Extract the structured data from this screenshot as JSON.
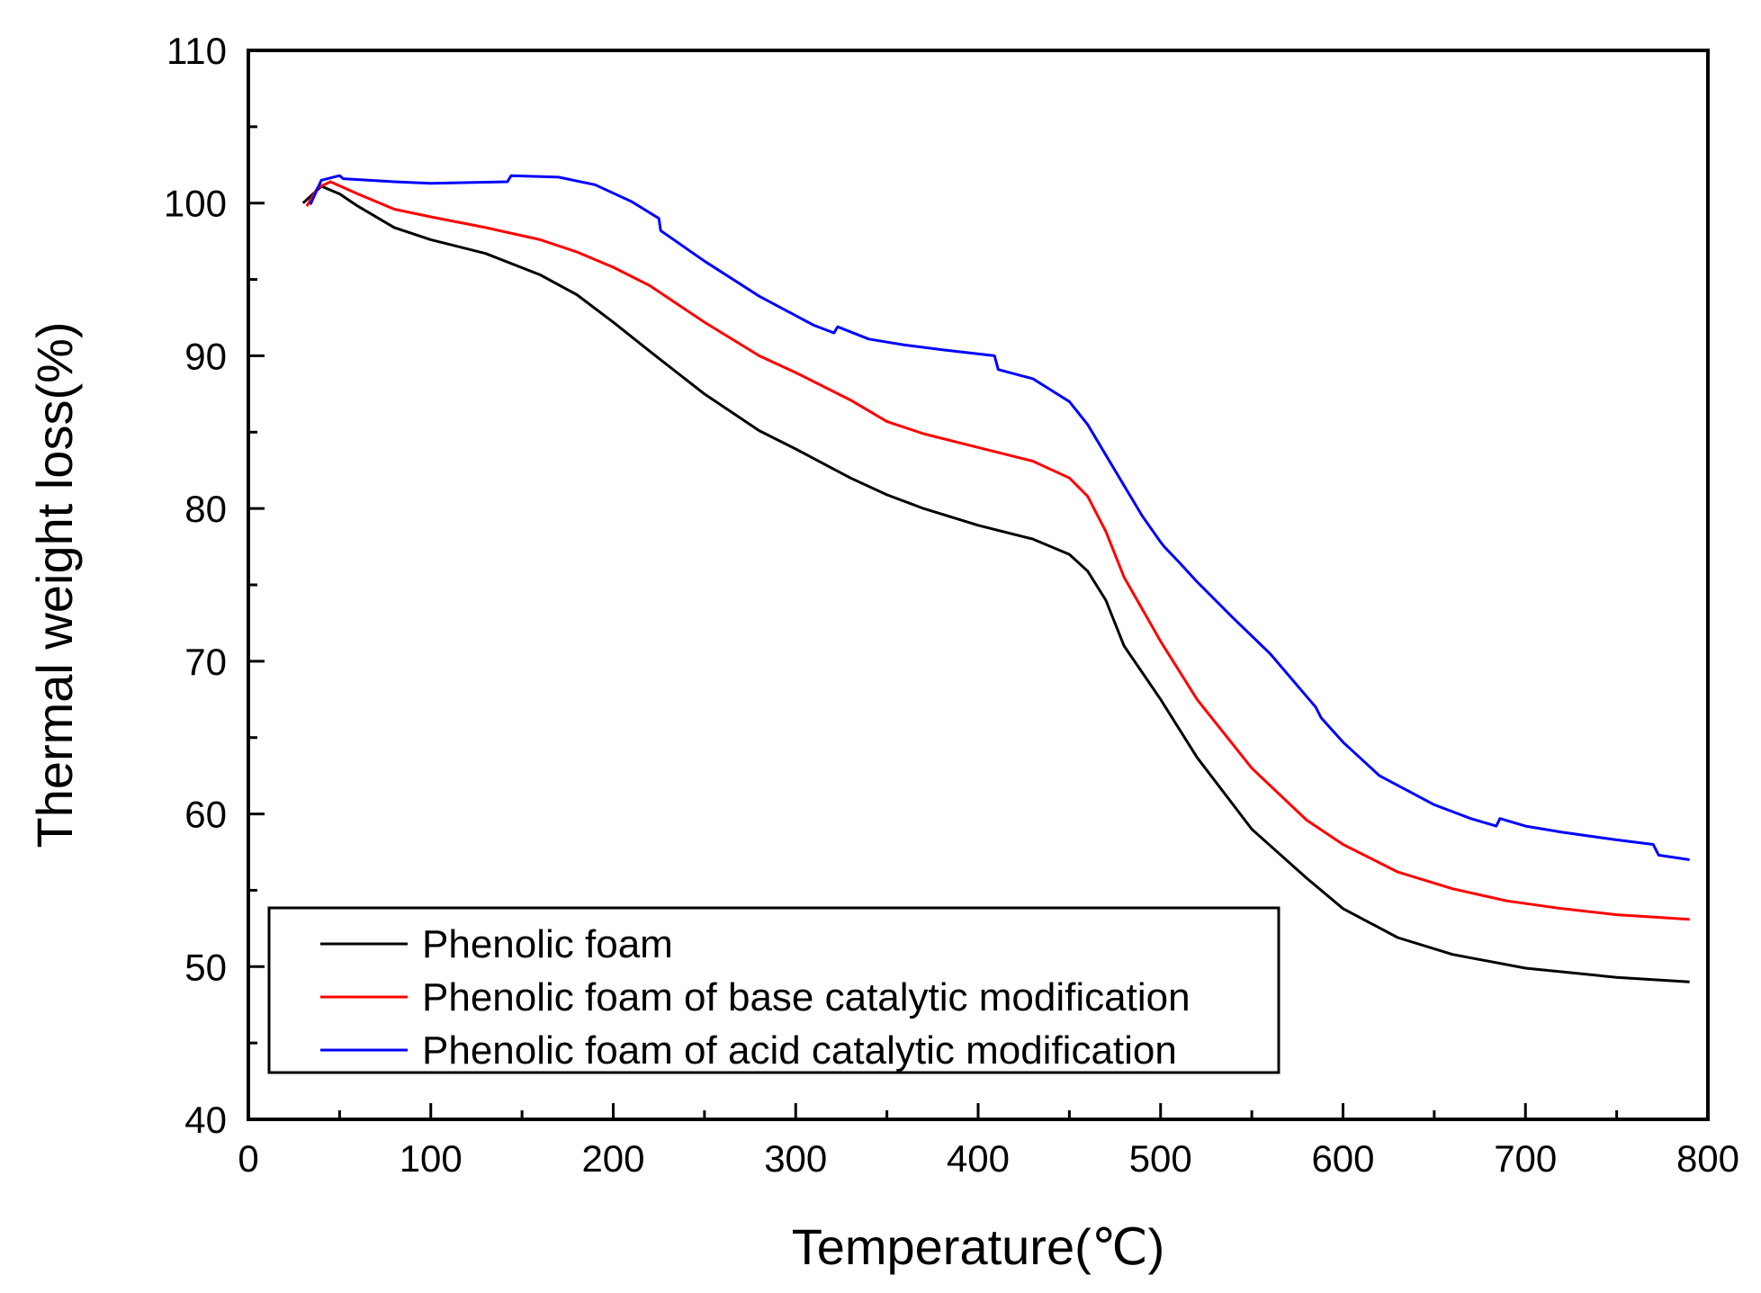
{
  "chart_data": {
    "type": "line",
    "xlabel": "Temperature(℃)",
    "ylabel": "Thermal weight loss(%)",
    "xlim": [
      0,
      800
    ],
    "ylim": [
      40,
      110
    ],
    "xticks": [
      0,
      100,
      200,
      300,
      400,
      500,
      600,
      700,
      800
    ],
    "yticks": [
      40,
      50,
      60,
      70,
      80,
      90,
      100,
      110
    ],
    "x_minor_step": 50,
    "y_minor_step": 5,
    "grid": false,
    "legend_position": "bottom-left",
    "series": [
      {
        "name": "Phenolic foam",
        "color": "#000000",
        "points": [
          [
            30,
            100.0
          ],
          [
            40,
            101.1
          ],
          [
            50,
            100.6
          ],
          [
            60,
            99.8
          ],
          [
            80,
            98.4
          ],
          [
            100,
            97.6
          ],
          [
            130,
            96.7
          ],
          [
            160,
            95.3
          ],
          [
            180,
            94.0
          ],
          [
            200,
            92.2
          ],
          [
            220,
            90.3
          ],
          [
            250,
            87.5
          ],
          [
            280,
            85.1
          ],
          [
            300,
            83.9
          ],
          [
            330,
            82.0
          ],
          [
            350,
            80.9
          ],
          [
            370,
            80.0
          ],
          [
            400,
            78.9
          ],
          [
            430,
            78.0
          ],
          [
            450,
            77.0
          ],
          [
            460,
            75.9
          ],
          [
            470,
            74.0
          ],
          [
            480,
            71.0
          ],
          [
            500,
            67.5
          ],
          [
            520,
            63.7
          ],
          [
            550,
            59.0
          ],
          [
            580,
            55.8
          ],
          [
            600,
            53.8
          ],
          [
            630,
            51.9
          ],
          [
            660,
            50.8
          ],
          [
            700,
            49.9
          ],
          [
            750,
            49.3
          ],
          [
            790,
            49.0
          ]
        ]
      },
      {
        "name": "Phenolic foam of base catalytic modification",
        "color": "#ff0000",
        "points": [
          [
            32,
            99.8
          ],
          [
            38,
            101.0
          ],
          [
            45,
            101.4
          ],
          [
            60,
            100.6
          ],
          [
            80,
            99.6
          ],
          [
            100,
            99.1
          ],
          [
            130,
            98.4
          ],
          [
            160,
            97.6
          ],
          [
            180,
            96.8
          ],
          [
            200,
            95.8
          ],
          [
            220,
            94.6
          ],
          [
            250,
            92.2
          ],
          [
            280,
            90.0
          ],
          [
            300,
            88.9
          ],
          [
            330,
            87.1
          ],
          [
            350,
            85.7
          ],
          [
            370,
            84.9
          ],
          [
            400,
            84.0
          ],
          [
            430,
            83.1
          ],
          [
            450,
            82.0
          ],
          [
            460,
            80.8
          ],
          [
            470,
            78.5
          ],
          [
            480,
            75.5
          ],
          [
            500,
            71.3
          ],
          [
            520,
            67.5
          ],
          [
            550,
            63.0
          ],
          [
            580,
            59.6
          ],
          [
            600,
            58.0
          ],
          [
            630,
            56.2
          ],
          [
            660,
            55.1
          ],
          [
            690,
            54.3
          ],
          [
            720,
            53.8
          ],
          [
            750,
            53.4
          ],
          [
            790,
            53.1
          ]
        ]
      },
      {
        "name": "Phenolic foam of acid catalytic modification",
        "color": "#0000ff",
        "points": [
          [
            34,
            99.9
          ],
          [
            40,
            101.5
          ],
          [
            50,
            101.8
          ],
          [
            52,
            101.6
          ],
          [
            80,
            101.4
          ],
          [
            100,
            101.3
          ],
          [
            142,
            101.4
          ],
          [
            144,
            101.8
          ],
          [
            170,
            101.7
          ],
          [
            190,
            101.2
          ],
          [
            210,
            100.1
          ],
          [
            225,
            99.0
          ],
          [
            226,
            98.2
          ],
          [
            250,
            96.2
          ],
          [
            280,
            93.9
          ],
          [
            310,
            92.0
          ],
          [
            321,
            91.5
          ],
          [
            323,
            91.9
          ],
          [
            340,
            91.1
          ],
          [
            360,
            90.7
          ],
          [
            380,
            90.4
          ],
          [
            409,
            90.0
          ],
          [
            411,
            89.1
          ],
          [
            430,
            88.5
          ],
          [
            450,
            87.0
          ],
          [
            460,
            85.5
          ],
          [
            470,
            83.5
          ],
          [
            480,
            81.5
          ],
          [
            490,
            79.5
          ],
          [
            500,
            77.8
          ],
          [
            502,
            77.5
          ],
          [
            510,
            76.5
          ],
          [
            520,
            75.2
          ],
          [
            540,
            72.8
          ],
          [
            560,
            70.5
          ],
          [
            585,
            67.0
          ],
          [
            588,
            66.3
          ],
          [
            600,
            64.7
          ],
          [
            620,
            62.5
          ],
          [
            650,
            60.6
          ],
          [
            670,
            59.7
          ],
          [
            684,
            59.2
          ],
          [
            686,
            59.7
          ],
          [
            700,
            59.2
          ],
          [
            720,
            58.8
          ],
          [
            750,
            58.3
          ],
          [
            770,
            58.0
          ],
          [
            773,
            57.3
          ],
          [
            790,
            57.0
          ]
        ]
      }
    ]
  }
}
